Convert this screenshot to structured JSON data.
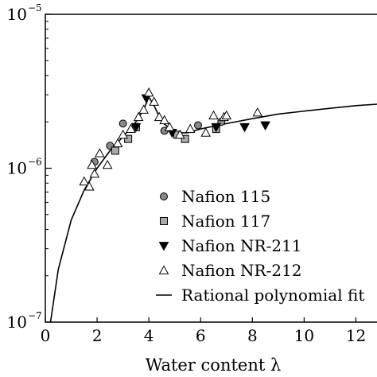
{
  "chart_data": {
    "type": "scatter",
    "xlabel": "Water content λ",
    "ylabel": "",
    "yscale": "log",
    "xlim": [
      0,
      13
    ],
    "ylim": [
      1e-07,
      1e-05
    ],
    "x_ticks": [
      {
        "value": 0,
        "label": "0"
      },
      {
        "value": 2,
        "label": "2"
      },
      {
        "value": 4,
        "label": "4"
      },
      {
        "value": 6,
        "label": "6"
      },
      {
        "value": 8,
        "label": "8"
      },
      {
        "value": 10,
        "label": "10"
      },
      {
        "value": 12,
        "label": "12"
      }
    ],
    "y_ticks": [
      {
        "value": 1e-07,
        "base": "10",
        "exp": "−7"
      },
      {
        "value": 1e-06,
        "base": "10",
        "exp": "−6"
      },
      {
        "value": 1e-05,
        "base": "10",
        "exp": "−5"
      }
    ],
    "legend_position": "bottom-right",
    "series": [
      {
        "name": "Nafion 115",
        "marker": "circle",
        "fill": "#888888",
        "points": [
          [
            1.9,
            1.1e-06
          ],
          [
            2.5,
            1.4e-06
          ],
          [
            3.0,
            1.95e-06
          ],
          [
            4.6,
            1.75e-06
          ],
          [
            5.9,
            1.9e-06
          ],
          [
            6.8,
            2e-06
          ]
        ]
      },
      {
        "name": "Nafion 117",
        "marker": "square",
        "fill": "#aaaaaa",
        "points": [
          [
            2.7,
            1.3e-06
          ],
          [
            3.2,
            1.55e-06
          ],
          [
            3.5,
            1.85e-06
          ],
          [
            5.1,
            1.65e-06
          ],
          [
            5.4,
            1.55e-06
          ],
          [
            6.6,
            1.8e-06
          ]
        ]
      },
      {
        "name": "Nafion NR-211",
        "marker": "triangle-down",
        "fill": "#000000",
        "points": [
          [
            3.5,
            1.85e-06
          ],
          [
            3.9,
            2.85e-06
          ],
          [
            4.9,
            1.7e-06
          ],
          [
            6.6,
            1.85e-06
          ],
          [
            7.7,
            1.85e-06
          ],
          [
            8.5,
            1.9e-06
          ]
        ]
      },
      {
        "name": "Nafion NR-212",
        "marker": "triangle-up",
        "fill": "none",
        "points": [
          [
            1.5,
            8.2e-07
          ],
          [
            1.7,
            7.6e-07
          ],
          [
            1.8,
            1.05e-06
          ],
          [
            1.9,
            9.2e-07
          ],
          [
            2.1,
            1.25e-06
          ],
          [
            2.4,
            1.05e-06
          ],
          [
            2.8,
            1.45e-06
          ],
          [
            3.0,
            1.65e-06
          ],
          [
            3.3,
            1.8e-06
          ],
          [
            3.6,
            2.15e-06
          ],
          [
            3.8,
            2.4e-06
          ],
          [
            4.0,
            3.1e-06
          ],
          [
            4.2,
            2.7e-06
          ],
          [
            4.4,
            2.15e-06
          ],
          [
            4.6,
            2.05e-06
          ],
          [
            4.8,
            1.85e-06
          ],
          [
            5.2,
            1.65e-06
          ],
          [
            5.6,
            1.8e-06
          ],
          [
            6.2,
            1.7e-06
          ],
          [
            6.5,
            2.2e-06
          ],
          [
            6.9,
            2.15e-06
          ],
          [
            7.0,
            2.2e-06
          ],
          [
            8.2,
            2.3e-06
          ]
        ]
      },
      {
        "name": "Rational polynomial fit",
        "marker": "line",
        "fill": "none",
        "points": [
          [
            0.2,
            1e-07
          ],
          [
            0.5,
            2.2e-07
          ],
          [
            1.0,
            4.6e-07
          ],
          [
            1.5,
            7.2e-07
          ],
          [
            2.0,
            1e-06
          ],
          [
            2.5,
            1.3e-06
          ],
          [
            3.0,
            1.6e-06
          ],
          [
            3.5,
            2e-06
          ],
          [
            3.8,
            2.4e-06
          ],
          [
            4.0,
            2.9e-06
          ],
          [
            4.2,
            2.55e-06
          ],
          [
            4.5,
            2e-06
          ],
          [
            5.0,
            1.7e-06
          ],
          [
            5.5,
            1.7e-06
          ],
          [
            6.0,
            1.8e-06
          ],
          [
            7.0,
            1.95e-06
          ],
          [
            8.0,
            2.1e-06
          ],
          [
            9.0,
            2.25e-06
          ],
          [
            10.0,
            2.35e-06
          ],
          [
            11.0,
            2.45e-06
          ],
          [
            12.0,
            2.55e-06
          ],
          [
            13.0,
            2.62e-06
          ]
        ]
      }
    ]
  }
}
